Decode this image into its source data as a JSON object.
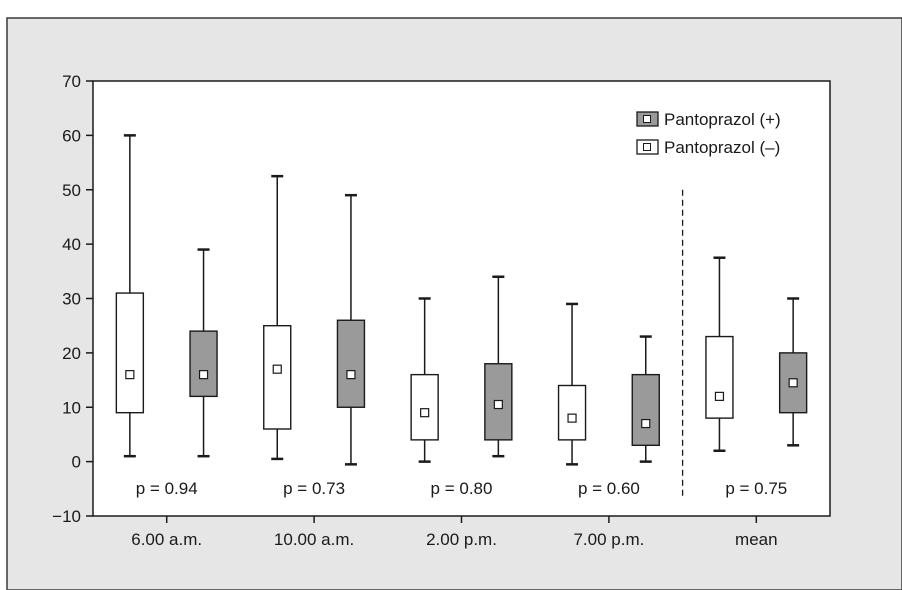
{
  "colors": {
    "panel_background": "#e6e6e7",
    "plot_background": "#ffffff",
    "axis": "#1a1a1a",
    "box_with": "#9a9a9b",
    "box_without": "#ffffff"
  },
  "chart_data": {
    "type": "boxplot",
    "title": "",
    "xlabel": "",
    "ylabel": "",
    "ylim": [
      -10,
      70
    ],
    "yticks": [
      -10,
      0,
      10,
      20,
      30,
      40,
      50,
      60,
      70
    ],
    "ytick_labels": [
      "−10",
      "0",
      "10",
      "20",
      "30",
      "40",
      "50",
      "60",
      "70"
    ],
    "legend_position": "top-right",
    "series": [
      {
        "name": "Pantoprazol (+)",
        "fill": "#9a9a9b"
      },
      {
        "name": "Pantoprazol (–)",
        "fill": "#ffffff"
      }
    ],
    "categories": [
      "6.00 a.m.",
      "10.00 a.m.",
      "2.00 p.m.",
      "7.00 p.m.",
      "mean"
    ],
    "p_values": [
      "p = 0.94",
      "p = 0.73",
      "p = 0.80",
      "p = 0.60",
      "p = 0.75"
    ],
    "separator_before_category": "mean",
    "boxes": [
      {
        "category": "6.00 a.m.",
        "series": "Pantoprazol (–)",
        "min": 1,
        "q1": 9,
        "median": 16,
        "q3": 31,
        "max": 60
      },
      {
        "category": "6.00 a.m.",
        "series": "Pantoprazol (+)",
        "min": 1,
        "q1": 12,
        "median": 16,
        "q3": 24,
        "max": 39
      },
      {
        "category": "10.00 a.m.",
        "series": "Pantoprazol (–)",
        "min": 0.5,
        "q1": 6,
        "median": 17,
        "q3": 25,
        "max": 52.5
      },
      {
        "category": "10.00 a.m.",
        "series": "Pantoprazol (+)",
        "min": -0.5,
        "q1": 10,
        "median": 16,
        "q3": 26,
        "max": 49
      },
      {
        "category": "2.00 p.m.",
        "series": "Pantoprazol (–)",
        "min": 0,
        "q1": 4,
        "median": 9,
        "q3": 16,
        "max": 30
      },
      {
        "category": "2.00 p.m.",
        "series": "Pantoprazol (+)",
        "min": 1,
        "q1": 4,
        "median": 10.5,
        "q3": 18,
        "max": 34
      },
      {
        "category": "7.00 p.m.",
        "series": "Pantoprazol (–)",
        "min": -0.5,
        "q1": 4,
        "median": 8,
        "q3": 14,
        "max": 29
      },
      {
        "category": "7.00 p.m.",
        "series": "Pantoprazol (+)",
        "min": 0,
        "q1": 3,
        "median": 7,
        "q3": 16,
        "max": 23
      },
      {
        "category": "mean",
        "series": "Pantoprazol (–)",
        "min": 2,
        "q1": 8,
        "median": 12,
        "q3": 23,
        "max": 37.5
      },
      {
        "category": "mean",
        "series": "Pantoprazol (+)",
        "min": 3,
        "q1": 9,
        "median": 14.5,
        "q3": 20,
        "max": 30
      }
    ]
  }
}
